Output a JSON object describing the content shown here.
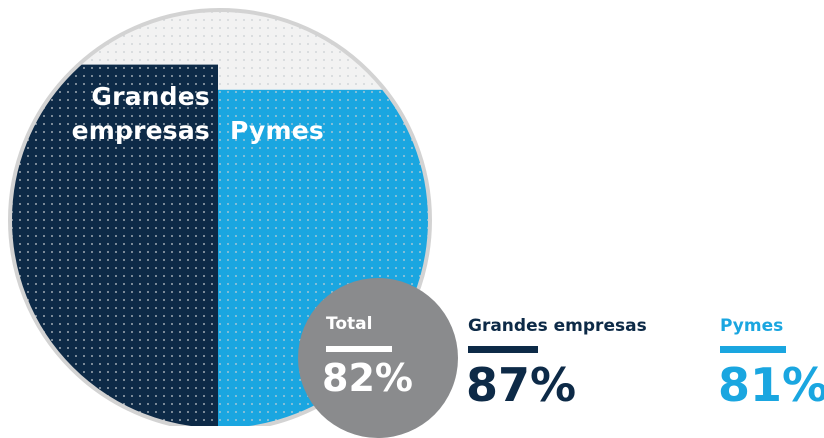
{
  "chart_data": {
    "type": "bar",
    "title": "",
    "categories": [
      "Grandes empresas",
      "Pymes"
    ],
    "values": [
      87,
      81
    ],
    "unit": "%",
    "ylim": [
      0,
      100
    ],
    "total": {
      "label": "Total",
      "value": 82,
      "display": "82%"
    },
    "colors": {
      "Grandes empresas": "#0d2a47",
      "Pymes": "#1aa6e0",
      "total": "#8a8b8d",
      "empty": "#f2f2f2",
      "outline": "#d3d3d3",
      "dots": "#c9cdd1"
    },
    "grid": false,
    "legend": "none"
  },
  "labels": {
    "grandes_line1": "Grandes",
    "grandes_line2": "empresas",
    "pymes": "Pymes"
  },
  "total": {
    "title": "Total",
    "value": "82%"
  },
  "stats": {
    "grandes": {
      "title": "Grandes empresas",
      "value": "87%"
    },
    "pymes": {
      "title": "Pymes",
      "value": "81%"
    }
  }
}
